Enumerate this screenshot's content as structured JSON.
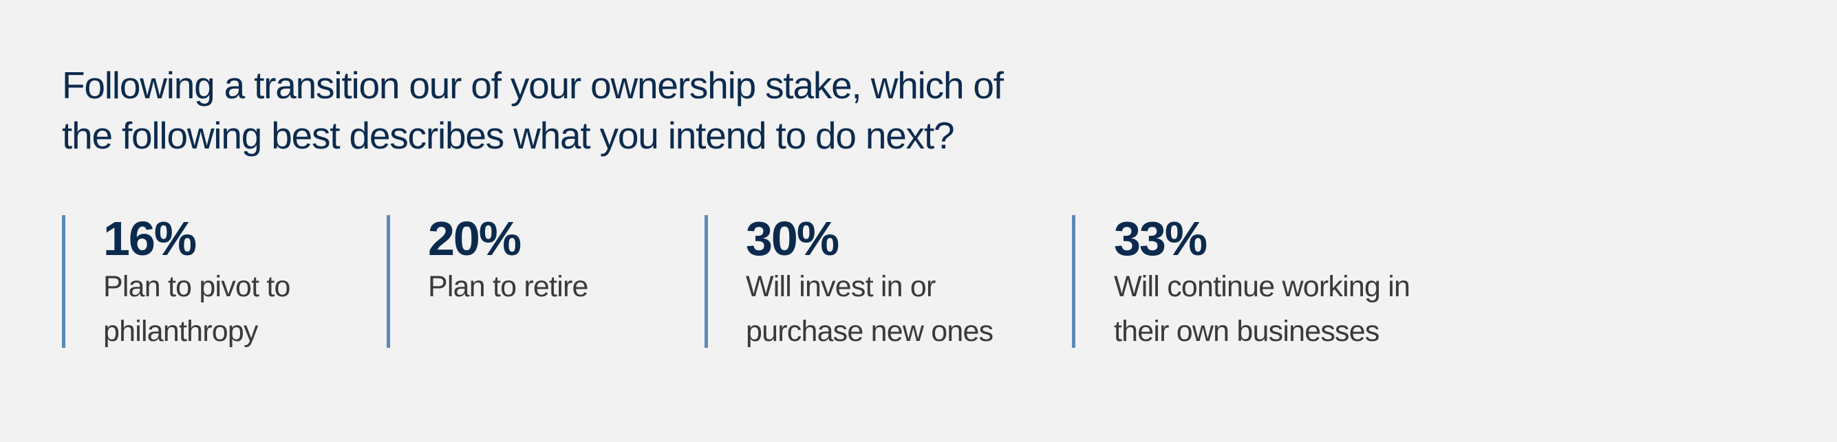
{
  "title": {
    "lines": [
      "Following a transition our of your ownership stake, which of",
      "the following best describes what you intend to do next?"
    ]
  },
  "accent_color": "#5b8ab8",
  "stats": [
    {
      "percent": "16%",
      "label_lines": [
        "Plan to pivot to",
        "philanthropy"
      ]
    },
    {
      "percent": "20%",
      "label_lines": [
        "Plan to retire"
      ]
    },
    {
      "percent": "30%",
      "label_lines": [
        "Will invest in or",
        "purchase new ones"
      ]
    },
    {
      "percent": "33%",
      "label_lines": [
        "Will continue working in",
        "their own businesses"
      ]
    }
  ]
}
